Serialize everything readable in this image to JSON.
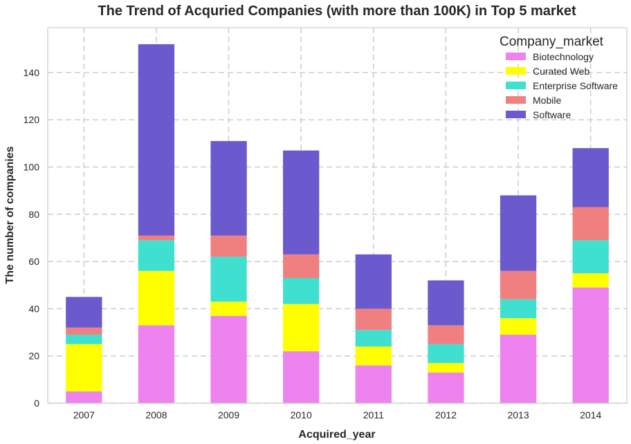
{
  "chart_data": {
    "type": "bar",
    "stacked": true,
    "title": "The Trend of Acquried Companies (with more than 100K) in Top 5 market",
    "xlabel": "Acquired_year",
    "ylabel": "The number of companies",
    "categories": [
      "2007",
      "2008",
      "2009",
      "2010",
      "2011",
      "2012",
      "2013",
      "2014"
    ],
    "ylim": [
      0,
      159
    ],
    "yticks": [
      0,
      20,
      40,
      60,
      80,
      100,
      120,
      140
    ],
    "grid": true,
    "legend": {
      "title": "Company_market",
      "placement": "top-right"
    },
    "series": [
      {
        "name": "Biotechnology",
        "color": "#ee82ee",
        "values": [
          5,
          33,
          37,
          22,
          16,
          13,
          29,
          49
        ]
      },
      {
        "name": "Curated Web",
        "color": "#ffff00",
        "values": [
          20,
          23,
          6,
          20,
          8,
          4,
          7,
          6
        ]
      },
      {
        "name": "Enterprise Software",
        "color": "#40e0d0",
        "values": [
          4,
          13,
          19,
          11,
          7,
          8,
          8,
          14
        ]
      },
      {
        "name": "Mobile",
        "color": "#f08080",
        "values": [
          3,
          2,
          9,
          10,
          9,
          8,
          12,
          14
        ]
      },
      {
        "name": "Software",
        "color": "#6a5acd",
        "values": [
          13,
          81,
          40,
          44,
          23,
          19,
          32,
          25
        ]
      }
    ]
  }
}
